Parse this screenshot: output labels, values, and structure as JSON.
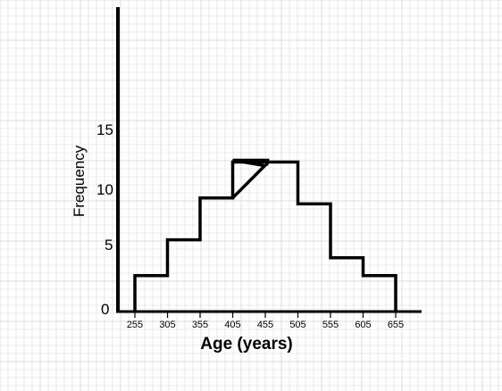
{
  "chart_data": {
    "type": "histogram",
    "title": "",
    "xlabel": "Age (years)",
    "ylabel": "Frequency",
    "x_ticks": [
      "255",
      "305",
      "355",
      "405",
      "455",
      "505",
      "555",
      "605",
      "655"
    ],
    "y_ticks": [
      "0",
      "5",
      "10",
      "15"
    ],
    "xlim": [
      255,
      655
    ],
    "ylim": [
      0,
      24
    ],
    "grid": true,
    "bins": [
      {
        "start": 255,
        "end": 305,
        "value": 3
      },
      {
        "start": 305,
        "end": 355,
        "value": 6
      },
      {
        "start": 355,
        "end": 405,
        "value": 9.5
      },
      {
        "start": 405,
        "end": 455,
        "value": 12.5
      },
      {
        "start": 455,
        "end": 505,
        "value": 12.5
      },
      {
        "start": 505,
        "end": 555,
        "value": 9
      },
      {
        "start": 555,
        "end": 605,
        "value": 4.5
      },
      {
        "start": 605,
        "end": 655,
        "value": 3
      }
    ],
    "colors": {
      "grid": "#dcdcdc",
      "line": "#000000",
      "background": "#ffffff"
    }
  }
}
